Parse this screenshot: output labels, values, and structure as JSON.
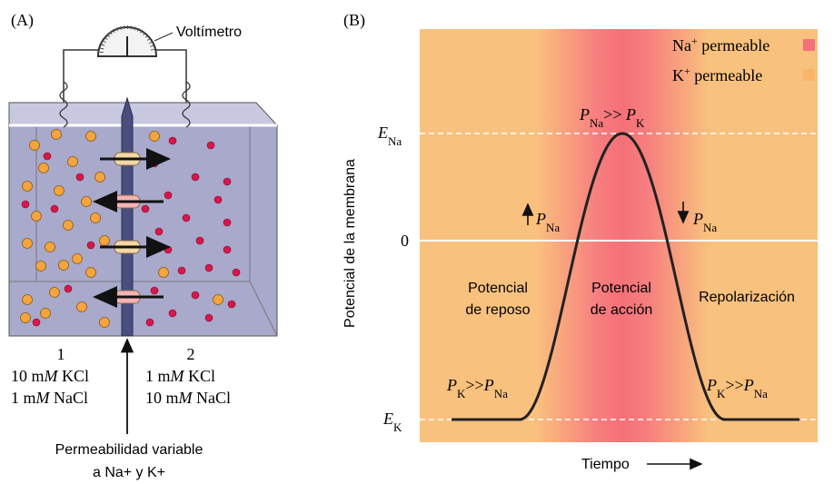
{
  "panel_a": {
    "label": "(A)",
    "voltmeter": "Voltímetro",
    "compartments": [
      {
        "number": "1",
        "lines": [
          [
            {
              "t": "10 m"
            },
            {
              "t": "M",
              "i": true
            },
            {
              "t": " KCl"
            }
          ],
          [
            {
              "t": "1 m"
            },
            {
              "t": "M",
              "i": true
            },
            {
              "t": " NaCl"
            }
          ]
        ]
      },
      {
        "number": "2",
        "lines": [
          [
            {
              "t": "1 m"
            },
            {
              "t": "M",
              "i": true
            },
            {
              "t": " KCl"
            }
          ],
          [
            {
              "t": "10 m"
            },
            {
              "t": "M",
              "i": true
            },
            {
              "t": " NaCl"
            }
          ]
        ]
      }
    ],
    "caption": [
      "Permeabilidad variable",
      "a Na+ y K+"
    ]
  },
  "panel_b": {
    "label": "(B)",
    "y_axis": "Potencial de la membrana",
    "x_axis": "Tiempo",
    "levels": {
      "e_na": [
        {
          "t": "E",
          "i": true
        },
        {
          "t": "Na",
          "sub": true
        }
      ],
      "zero": "0",
      "e_k": [
        {
          "t": "E",
          "i": true
        },
        {
          "t": "K",
          "sub": true
        }
      ]
    },
    "legend": [
      [
        {
          "t": "Na"
        },
        {
          "t": "+",
          "sup": true
        },
        {
          "t": " permeable"
        }
      ],
      [
        {
          "t": "K"
        },
        {
          "t": "+",
          "sup": true
        },
        {
          "t": " permeable"
        }
      ]
    ],
    "peak": [
      {
        "t": "P",
        "i": true
      },
      {
        "t": "Na",
        "sub": true
      },
      {
        "t": ">> "
      },
      {
        "t": "P",
        "i": true
      },
      {
        "t": "K",
        "sub": true
      }
    ],
    "rise": [
      {
        "t": "P",
        "i": true
      },
      {
        "t": "Na",
        "sub": true
      }
    ],
    "fall": [
      {
        "t": "P",
        "i": true
      },
      {
        "t": "Na",
        "sub": true
      }
    ],
    "rest_left": [
      {
        "t": "P",
        "i": true
      },
      {
        "t": "K",
        "sub": true
      },
      {
        "t": ">>"
      },
      {
        "t": "P",
        "i": true
      },
      {
        "t": "Na",
        "sub": true
      }
    ],
    "rest_right": [
      {
        "t": "P",
        "i": true
      },
      {
        "t": "K",
        "sub": true
      },
      {
        "t": ">>"
      },
      {
        "t": "P",
        "i": true
      },
      {
        "t": "Na",
        "sub": true
      }
    ],
    "phases": [
      [
        "Potencial",
        "de reposo"
      ],
      [
        "Potencial",
        "de acción"
      ],
      [
        "Repolarización"
      ]
    ]
  }
}
